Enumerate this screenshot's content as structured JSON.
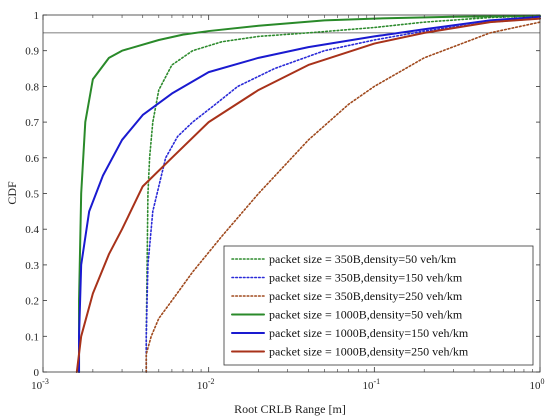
{
  "chart_data": {
    "type": "line",
    "xscale": "log",
    "xlabel": "Root CRLB Range [m]",
    "ylabel": "CDF",
    "xlim": [
      0.001,
      1
    ],
    "ylim": [
      0,
      1
    ],
    "xticks": [
      {
        "value": 0.001,
        "base": "10",
        "exp": "-3"
      },
      {
        "value": 0.01,
        "base": "10",
        "exp": "-2"
      },
      {
        "value": 0.1,
        "base": "10",
        "exp": "-1"
      },
      {
        "value": 1,
        "base": "10",
        "exp": "0"
      }
    ],
    "yticks": [
      "0",
      "0.1",
      "0.2",
      "0.3",
      "0.4",
      "0.5",
      "0.6",
      "0.7",
      "0.8",
      "0.9",
      "1"
    ],
    "reference_line_y": 0.95,
    "grid": false,
    "legend_position": "bottom-right",
    "series": [
      {
        "name": "packet size = 350B,density=50 veh/km",
        "color": "#2e8b2e",
        "style": "dotted",
        "points": [
          [
            0.0042,
            0
          ],
          [
            0.0042,
            0.1
          ],
          [
            0.00425,
            0.3
          ],
          [
            0.0043,
            0.5
          ],
          [
            0.0044,
            0.6
          ],
          [
            0.0046,
            0.7
          ],
          [
            0.005,
            0.79
          ],
          [
            0.006,
            0.86
          ],
          [
            0.008,
            0.9
          ],
          [
            0.012,
            0.925
          ],
          [
            0.02,
            0.94
          ],
          [
            0.04,
            0.95
          ],
          [
            0.1,
            0.965
          ],
          [
            0.2,
            0.98
          ],
          [
            0.5,
            0.993
          ],
          [
            1,
            0.998
          ]
        ]
      },
      {
        "name": "packet size = 350B,density=150 veh/km",
        "color": "#2a2ad8",
        "style": "dotted",
        "points": [
          [
            0.0042,
            0
          ],
          [
            0.0042,
            0.1
          ],
          [
            0.0043,
            0.3
          ],
          [
            0.0046,
            0.45
          ],
          [
            0.0055,
            0.6
          ],
          [
            0.0065,
            0.66
          ],
          [
            0.008,
            0.7
          ],
          [
            0.011,
            0.75
          ],
          [
            0.015,
            0.8
          ],
          [
            0.025,
            0.85
          ],
          [
            0.05,
            0.9
          ],
          [
            0.1,
            0.93
          ],
          [
            0.2,
            0.955
          ],
          [
            0.5,
            0.98
          ],
          [
            1,
            0.99
          ]
        ]
      },
      {
        "name": "packet size = 350B,density=250 veh/km",
        "color": "#a04a1e",
        "style": "dotted",
        "points": [
          [
            0.0042,
            0
          ],
          [
            0.0042,
            0.05
          ],
          [
            0.0045,
            0.1
          ],
          [
            0.005,
            0.15
          ],
          [
            0.006,
            0.2
          ],
          [
            0.008,
            0.28
          ],
          [
            0.012,
            0.38
          ],
          [
            0.02,
            0.5
          ],
          [
            0.04,
            0.65
          ],
          [
            0.07,
            0.75
          ],
          [
            0.1,
            0.8
          ],
          [
            0.2,
            0.88
          ],
          [
            0.5,
            0.95
          ],
          [
            1,
            0.98
          ]
        ]
      },
      {
        "name": "packet size = 1000B,density=50 veh/km",
        "color": "#2a8a2a",
        "style": "solid",
        "points": [
          [
            0.00165,
            0
          ],
          [
            0.00165,
            0.2
          ],
          [
            0.0017,
            0.5
          ],
          [
            0.0018,
            0.7
          ],
          [
            0.002,
            0.82
          ],
          [
            0.0025,
            0.88
          ],
          [
            0.003,
            0.9
          ],
          [
            0.005,
            0.93
          ],
          [
            0.007,
            0.945
          ],
          [
            0.01,
            0.955
          ],
          [
            0.02,
            0.97
          ],
          [
            0.05,
            0.985
          ],
          [
            0.1,
            0.99
          ],
          [
            0.3,
            0.995
          ],
          [
            1,
            0.998
          ]
        ]
      },
      {
        "name": "packet size = 1000B,density=150 veh/km",
        "color": "#1a1ad0",
        "style": "solid",
        "points": [
          [
            0.00165,
            0
          ],
          [
            0.00165,
            0.1
          ],
          [
            0.0017,
            0.3
          ],
          [
            0.0019,
            0.45
          ],
          [
            0.0023,
            0.55
          ],
          [
            0.003,
            0.65
          ],
          [
            0.004,
            0.72
          ],
          [
            0.006,
            0.78
          ],
          [
            0.01,
            0.84
          ],
          [
            0.02,
            0.88
          ],
          [
            0.04,
            0.91
          ],
          [
            0.1,
            0.94
          ],
          [
            0.2,
            0.96
          ],
          [
            0.5,
            0.985
          ],
          [
            1,
            0.995
          ]
        ]
      },
      {
        "name": "packet size = 1000B,density=250 veh/km",
        "color": "#a8321a",
        "style": "solid",
        "points": [
          [
            0.0016,
            0
          ],
          [
            0.0017,
            0.1
          ],
          [
            0.002,
            0.22
          ],
          [
            0.0025,
            0.33
          ],
          [
            0.003,
            0.4
          ],
          [
            0.004,
            0.52
          ],
          [
            0.006,
            0.6
          ],
          [
            0.01,
            0.7
          ],
          [
            0.02,
            0.79
          ],
          [
            0.04,
            0.86
          ],
          [
            0.1,
            0.92
          ],
          [
            0.2,
            0.95
          ],
          [
            0.5,
            0.98
          ],
          [
            1,
            0.99
          ]
        ]
      }
    ]
  }
}
